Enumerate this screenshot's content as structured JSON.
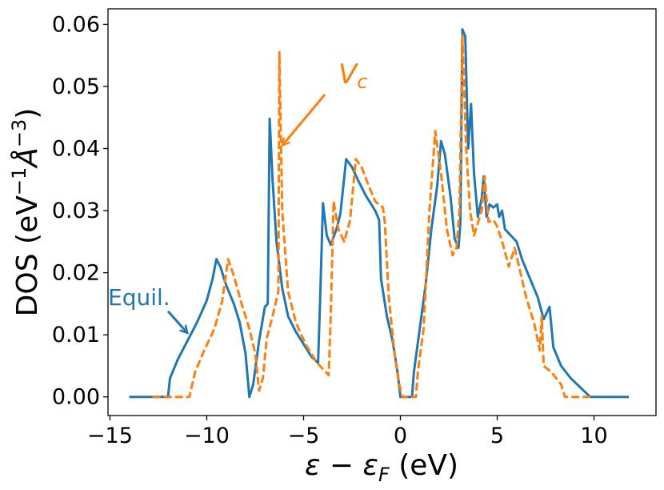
{
  "chart_data": {
    "type": "line",
    "xlabel": "ε − ε_F (eV)",
    "ylabel": "DOS (eV⁻¹Å⁻³)",
    "xlim": [
      -15.1,
      13.2
    ],
    "ylim": [
      -0.003,
      0.0625
    ],
    "x_ticks": [
      -15,
      -10,
      -5,
      0,
      5,
      10
    ],
    "x_tick_labels": [
      "−15",
      "−10",
      "−5",
      "0",
      "5",
      "10"
    ],
    "y_ticks": [
      0.0,
      0.01,
      0.02,
      0.03,
      0.04,
      0.05,
      0.06
    ],
    "y_tick_labels": [
      "0.00",
      "0.01",
      "0.02",
      "0.03",
      "0.04",
      "0.05",
      "0.06"
    ],
    "grid": false,
    "series": [
      {
        "color": "#1f77b4",
        "style": "solid",
        "points": [
          [
            -14.0,
            0
          ],
          [
            -12.0,
            0
          ],
          [
            -11.9,
            0.003
          ],
          [
            -11.5,
            0.006
          ],
          [
            -11.0,
            0.009
          ],
          [
            -10.5,
            0.012
          ],
          [
            -10.0,
            0.0155
          ],
          [
            -9.7,
            0.019
          ],
          [
            -9.5,
            0.0222
          ],
          [
            -9.3,
            0.021
          ],
          [
            -9.0,
            0.018
          ],
          [
            -8.6,
            0.015
          ],
          [
            -8.3,
            0.012
          ],
          [
            -8.0,
            0.007
          ],
          [
            -7.8,
            0.0
          ],
          [
            -7.6,
            0.002
          ],
          [
            -7.3,
            0.009
          ],
          [
            -7.0,
            0.0145
          ],
          [
            -6.85,
            0.015
          ],
          [
            -6.75,
            0.0448
          ],
          [
            -6.6,
            0.035
          ],
          [
            -6.4,
            0.025
          ],
          [
            -6.1,
            0.0175
          ],
          [
            -5.8,
            0.013
          ],
          [
            -5.4,
            0.0105
          ],
          [
            -5.0,
            0.0085
          ],
          [
            -4.6,
            0.0065
          ],
          [
            -4.25,
            0.0055
          ],
          [
            -4.15,
            0.015
          ],
          [
            -4.0,
            0.0312
          ],
          [
            -3.8,
            0.026
          ],
          [
            -3.6,
            0.0245
          ],
          [
            -3.3,
            0.027
          ],
          [
            -3.1,
            0.0295
          ],
          [
            -2.8,
            0.0383
          ],
          [
            -2.5,
            0.037
          ],
          [
            -2.2,
            0.035
          ],
          [
            -1.8,
            0.0325
          ],
          [
            -1.3,
            0.03
          ],
          [
            -1.1,
            0.0285
          ],
          [
            -1.0,
            0.019
          ],
          [
            -0.7,
            0.013
          ],
          [
            -0.4,
            0.009
          ],
          [
            -0.15,
            0.004
          ],
          [
            0.0,
            0.0
          ],
          [
            0.6,
            0.0
          ],
          [
            0.7,
            0.004
          ],
          [
            1.0,
            0.011
          ],
          [
            1.3,
            0.018
          ],
          [
            1.6,
            0.027
          ],
          [
            1.9,
            0.034
          ],
          [
            2.1,
            0.0412
          ],
          [
            2.3,
            0.039
          ],
          [
            2.6,
            0.032
          ],
          [
            2.8,
            0.0255
          ],
          [
            3.0,
            0.024
          ],
          [
            3.1,
            0.028
          ],
          [
            3.2,
            0.0592
          ],
          [
            3.35,
            0.058
          ],
          [
            3.5,
            0.04
          ],
          [
            3.65,
            0.0472
          ],
          [
            3.8,
            0.036
          ],
          [
            4.0,
            0.029
          ],
          [
            4.2,
            0.032
          ],
          [
            4.3,
            0.0355
          ],
          [
            4.45,
            0.029
          ],
          [
            4.6,
            0.031
          ],
          [
            4.8,
            0.0305
          ],
          [
            5.0,
            0.031
          ],
          [
            5.1,
            0.029
          ],
          [
            5.25,
            0.03
          ],
          [
            5.4,
            0.027
          ],
          [
            5.7,
            0.026
          ],
          [
            6.0,
            0.025
          ],
          [
            6.3,
            0.022
          ],
          [
            6.7,
            0.019
          ],
          [
            7.1,
            0.016
          ],
          [
            7.4,
            0.0125
          ],
          [
            7.7,
            0.0145
          ],
          [
            7.9,
            0.008
          ],
          [
            8.3,
            0.005
          ],
          [
            8.8,
            0.003
          ],
          [
            9.3,
            0.0015
          ],
          [
            9.8,
            0.0
          ],
          [
            11.8,
            0.0
          ]
        ]
      },
      {
        "color": "#ff7f0e",
        "style": "dashed",
        "points": [
          [
            -12.8,
            0
          ],
          [
            -10.9,
            0
          ],
          [
            -10.6,
            0.004
          ],
          [
            -10.2,
            0.007
          ],
          [
            -9.6,
            0.011
          ],
          [
            -9.2,
            0.0155
          ],
          [
            -8.9,
            0.0222
          ],
          [
            -8.6,
            0.0195
          ],
          [
            -8.2,
            0.015
          ],
          [
            -7.8,
            0.011
          ],
          [
            -7.5,
            0.007
          ],
          [
            -7.3,
            0.001
          ],
          [
            -7.1,
            0.003
          ],
          [
            -6.9,
            0.0095
          ],
          [
            -6.6,
            0.013
          ],
          [
            -6.3,
            0.017
          ],
          [
            -6.25,
            0.0555
          ],
          [
            -6.1,
            0.03
          ],
          [
            -5.8,
            0.017
          ],
          [
            -5.4,
            0.012
          ],
          [
            -4.9,
            0.0085
          ],
          [
            -4.3,
            0.0055
          ],
          [
            -3.7,
            0.0035
          ],
          [
            -3.6,
            0.013
          ],
          [
            -3.45,
            0.0315
          ],
          [
            -3.2,
            0.027
          ],
          [
            -2.9,
            0.025
          ],
          [
            -2.6,
            0.0285
          ],
          [
            -2.3,
            0.0383
          ],
          [
            -2.0,
            0.037
          ],
          [
            -1.7,
            0.0345
          ],
          [
            -1.3,
            0.0315
          ],
          [
            -0.9,
            0.0305
          ],
          [
            -0.8,
            0.028
          ],
          [
            -0.6,
            0.016
          ],
          [
            -0.3,
            0.007
          ],
          [
            -0.1,
            0.0025
          ],
          [
            0.1,
            0.0
          ],
          [
            0.8,
            0.0
          ],
          [
            0.9,
            0.004
          ],
          [
            1.2,
            0.011
          ],
          [
            1.5,
            0.03
          ],
          [
            1.8,
            0.0428
          ],
          [
            2.1,
            0.036
          ],
          [
            2.4,
            0.027
          ],
          [
            2.7,
            0.0228
          ],
          [
            2.9,
            0.024
          ],
          [
            3.05,
            0.03
          ],
          [
            3.2,
            0.0582
          ],
          [
            3.4,
            0.04
          ],
          [
            3.6,
            0.03
          ],
          [
            3.8,
            0.026
          ],
          [
            4.0,
            0.028
          ],
          [
            4.2,
            0.03
          ],
          [
            4.35,
            0.0355
          ],
          [
            4.55,
            0.0282
          ],
          [
            4.8,
            0.0285
          ],
          [
            5.0,
            0.0275
          ],
          [
            5.3,
            0.0245
          ],
          [
            5.6,
            0.021
          ],
          [
            5.9,
            0.024
          ],
          [
            6.2,
            0.02
          ],
          [
            6.5,
            0.016
          ],
          [
            6.9,
            0.012
          ],
          [
            7.2,
            0.0075
          ],
          [
            7.3,
            0.013
          ],
          [
            7.4,
            0.005
          ],
          [
            7.8,
            0.004
          ],
          [
            8.3,
            0.002
          ],
          [
            8.5,
            0.0
          ],
          [
            9.9,
            0.0
          ]
        ]
      }
    ],
    "annotations": [
      {
        "text": "V",
        "subscript": "c",
        "color": "#ff7f0e",
        "text_at": [
          -3.2,
          0.0505
        ],
        "arrow_from": [
          -3.9,
          0.0487
        ],
        "arrow_to": [
          -6.1,
          0.0405
        ]
      },
      {
        "text": "Equil.",
        "color": "#1f77b4",
        "text_at": [
          -15.1,
          0.0148
        ],
        "arrow_from": [
          -12.0,
          0.0138
        ],
        "arrow_to": [
          -11.0,
          0.0103
        ]
      }
    ]
  }
}
